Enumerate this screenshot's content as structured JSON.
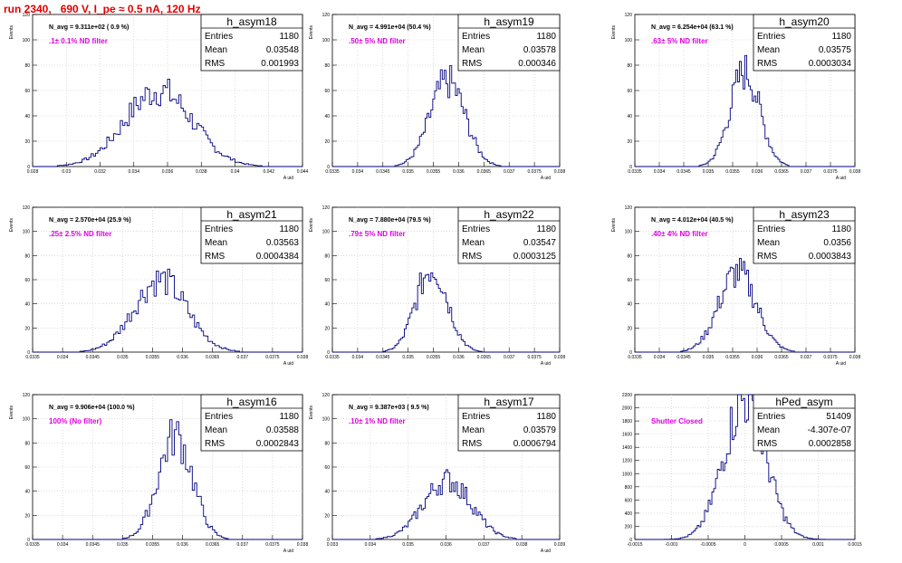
{
  "page": {
    "title": "run 2340,   690 V, I_pe ≈ 0.5 nA, 120 Hz"
  },
  "colors": {
    "histogram_line": "#00007f",
    "grid": "#c8c8c8",
    "annotation_filter": "#e000e0",
    "annotation_navg": "#000000",
    "title": "#e00000"
  },
  "chart_data": [
    {
      "type": "bar",
      "name": "h_asym18",
      "stats": {
        "Entries": "1180",
        "Mean": "0.03548",
        "RMS": "0.001993"
      },
      "navg": "N_avg = 9.311e+02 ( 0.9 %)",
      "filter": ".1± 0.1% ND filter",
      "ylabel": "Events",
      "xlabel": "A_uid",
      "grid": true,
      "xlim": [
        0.028,
        0.044
      ],
      "ylim": [
        0,
        120
      ],
      "xticks": [
        "0.028",
        "0.03",
        "0.032",
        "0.034",
        "0.036",
        "0.038",
        "0.04",
        "0.042",
        "0.044"
      ],
      "yticks": [
        "0",
        "20",
        "40",
        "60",
        "80",
        "100",
        "120"
      ],
      "mean": 0.03548,
      "rms": 0.001993,
      "peak": 60
    },
    {
      "type": "bar",
      "name": "h_asym19",
      "stats": {
        "Entries": "1180",
        "Mean": "0.03578",
        "RMS": "0.000346"
      },
      "navg": "N_avg = 4.991e+04 (50.4 %)",
      "filter": ".50± 5% ND filter",
      "ylabel": "Events",
      "xlabel": "A_uid",
      "grid": true,
      "xlim": [
        0.0335,
        0.038
      ],
      "ylim": [
        0,
        120
      ],
      "xticks": [
        "0.0335",
        "0.034",
        "0.0345",
        "0.035",
        "0.0355",
        "0.036",
        "0.0365",
        "0.037",
        "0.0375",
        "0.038"
      ],
      "yticks": [
        "0",
        "20",
        "40",
        "60",
        "80",
        "100",
        "120"
      ],
      "mean": 0.03578,
      "rms": 0.000346,
      "peak": 67
    },
    {
      "type": "bar",
      "name": "h_asym20",
      "stats": {
        "Entries": "1180",
        "Mean": "0.03575",
        "RMS": "0.0003034"
      },
      "navg": "N_avg = 6.254e+04 (63.1 %)",
      "filter": ".63± 5% ND filter",
      "ylabel": "Events",
      "xlabel": "A_uid",
      "grid": true,
      "xlim": [
        0.0335,
        0.038
      ],
      "ylim": [
        0,
        120
      ],
      "xticks": [
        "0.0335",
        "0.034",
        "0.0345",
        "0.035",
        "0.0355",
        "0.036",
        "0.0365",
        "0.037",
        "0.0375",
        "0.038"
      ],
      "yticks": [
        "0",
        "20",
        "40",
        "60",
        "80",
        "100",
        "120"
      ],
      "mean": 0.03575,
      "rms": 0.0003034,
      "peak": 75
    },
    {
      "type": "bar",
      "name": "h_asym21",
      "stats": {
        "Entries": "1180",
        "Mean": "0.03563",
        "RMS": "0.0004384"
      },
      "navg": "N_avg = 2.570e+04 (25.9 %)",
      "filter": ".25± 2.5% ND filter",
      "ylabel": "Events",
      "xlabel": "A_uid",
      "grid": true,
      "xlim": [
        0.0335,
        0.038
      ],
      "ylim": [
        0,
        120
      ],
      "xticks": [
        "0.0335",
        "0.034",
        "0.0345",
        "0.035",
        "0.0355",
        "0.036",
        "0.0365",
        "0.037",
        "0.0375",
        "0.038"
      ],
      "yticks": [
        "0",
        "20",
        "40",
        "60",
        "80",
        "100",
        "120"
      ],
      "mean": 0.03563,
      "rms": 0.0004384,
      "peak": 60
    },
    {
      "type": "bar",
      "name": "h_asym22",
      "stats": {
        "Entries": "1180",
        "Mean": "0.03547",
        "RMS": "0.0003125"
      },
      "navg": "N_avg = 7.880e+04 (79.5 %)",
      "filter": ".79± 5% ND filter",
      "ylabel": "Events",
      "xlabel": "A_uid",
      "grid": true,
      "xlim": [
        0.0335,
        0.038
      ],
      "ylim": [
        0,
        120
      ],
      "xticks": [
        "0.0335",
        "0.034",
        "0.0345",
        "0.035",
        "0.0355",
        "0.036",
        "0.0365",
        "0.037",
        "0.0375",
        "0.038"
      ],
      "yticks": [
        "0",
        "20",
        "40",
        "60",
        "80",
        "100",
        "120"
      ],
      "mean": 0.03547,
      "rms": 0.0003125,
      "peak": 70
    },
    {
      "type": "bar",
      "name": "h_asym23",
      "stats": {
        "Entries": "1180",
        "Mean": "0.0356",
        "RMS": "0.0003843"
      },
      "navg": "N_avg = 4.012e+04 (40.5 %)",
      "filter": ".40± 4% ND filter",
      "ylabel": "Events",
      "xlabel": "A_uid",
      "grid": true,
      "xlim": [
        0.0335,
        0.038
      ],
      "ylim": [
        0,
        120
      ],
      "xticks": [
        "0.0335",
        "0.034",
        "0.0345",
        "0.035",
        "0.0355",
        "0.036",
        "0.0365",
        "0.037",
        "0.0375",
        "0.038"
      ],
      "yticks": [
        "0",
        "20",
        "40",
        "60",
        "80",
        "100",
        "120"
      ],
      "mean": 0.0356,
      "rms": 0.0003843,
      "peak": 66
    },
    {
      "type": "bar",
      "name": "h_asym16",
      "stats": {
        "Entries": "1180",
        "Mean": "0.03588",
        "RMS": "0.0002843"
      },
      "navg": "N_avg = 9.906e+04 (100.0 %)",
      "filter": "100% (No filter)",
      "ylabel": "Events",
      "xlabel": "A_uid",
      "grid": true,
      "xlim": [
        0.0335,
        0.038
      ],
      "ylim": [
        0,
        120
      ],
      "xticks": [
        "0.0335",
        "0.034",
        "0.0345",
        "0.035",
        "0.0355",
        "0.036",
        "0.0365",
        "0.037",
        "0.0375",
        "0.038"
      ],
      "yticks": [
        "0",
        "20",
        "40",
        "60",
        "80",
        "100",
        "120"
      ],
      "mean": 0.03588,
      "rms": 0.0002843,
      "peak": 86
    },
    {
      "type": "bar",
      "name": "h_asym17",
      "stats": {
        "Entries": "1180",
        "Mean": "0.03579",
        "RMS": "0.0006794"
      },
      "navg": "N_avg = 9.387e+03 ( 9.5 %)",
      "filter": ".10± 1% ND filter",
      "ylabel": "Events",
      "xlabel": "A_uid",
      "grid": true,
      "xlim": [
        0.0325,
        0.039
      ],
      "ylim": [
        0,
        120
      ],
      "xticks": [
        "0.033",
        "0.034",
        "0.035",
        "0.036",
        "0.037",
        "0.038",
        "0.039"
      ],
      "yticks": [
        "0",
        "20",
        "40",
        "60",
        "80",
        "100",
        "120"
      ],
      "mean": 0.03579,
      "rms": 0.0006794,
      "peak": 49
    },
    {
      "type": "bar",
      "name": "hPed_asym",
      "stats": {
        "Entries": "51409",
        "Mean": "-4.307e-07",
        "RMS": "0.0002858"
      },
      "navg": "",
      "filter": "Shutter Closed",
      "ylabel": "",
      "xlabel": "",
      "grid": true,
      "xlim": [
        -0.0015,
        0.0015
      ],
      "ylim": [
        0,
        2200
      ],
      "xticks": [
        "-0.0015",
        "-0.001",
        "-0.0005",
        "0",
        "0.0005",
        "0.001",
        "0.0015"
      ],
      "yticks": [
        "0",
        "200",
        "400",
        "600",
        "800",
        "1000",
        "1200",
        "1400",
        "1600",
        "1800",
        "2000",
        "2200"
      ],
      "mean": -4.307e-07,
      "rms": 0.0002858,
      "peak": 2130
    }
  ]
}
